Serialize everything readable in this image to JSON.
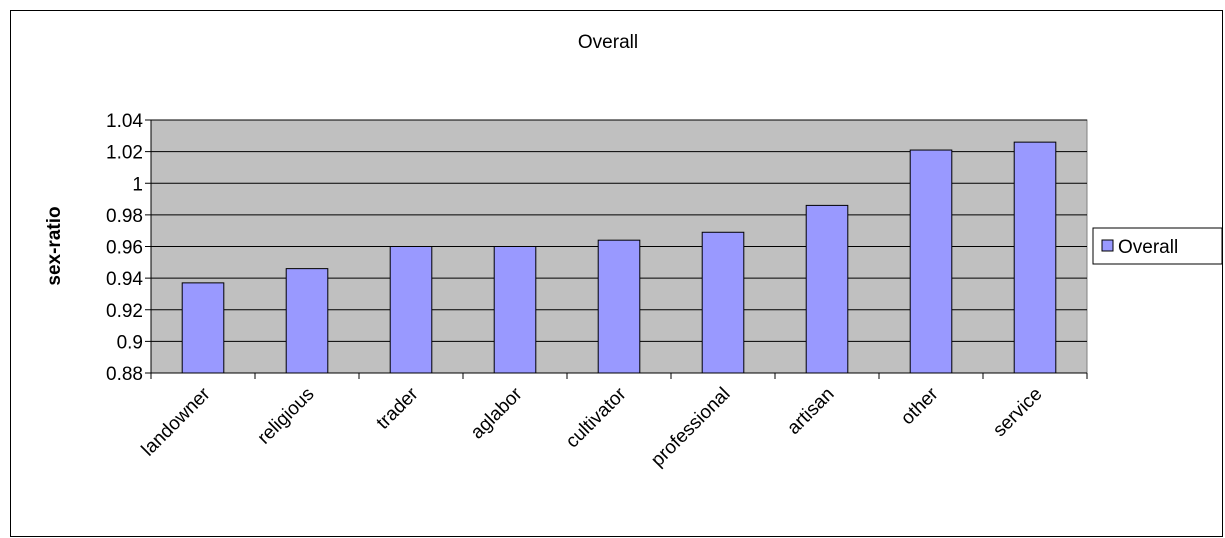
{
  "chart_data": {
    "type": "bar",
    "title": "Overall",
    "xlabel": "",
    "ylabel": "sex-ratio",
    "categories": [
      "landowner",
      "religious",
      "trader",
      "aglabor",
      "cultivator",
      "professional",
      "artisan",
      "other",
      "service"
    ],
    "series": [
      {
        "name": "Overall",
        "values": [
          0.937,
          0.946,
          0.96,
          0.96,
          0.964,
          0.969,
          0.986,
          1.021,
          1.026
        ],
        "color": "#9999ff"
      }
    ],
    "ylim": [
      0.88,
      1.04
    ],
    "yticks": [
      "0.88",
      "0.9",
      "0.92",
      "0.94",
      "0.96",
      "0.98",
      "1",
      "1.02",
      "1.04"
    ],
    "grid": true,
    "plot_background": "#c0c0c0",
    "legend_position": "right"
  }
}
